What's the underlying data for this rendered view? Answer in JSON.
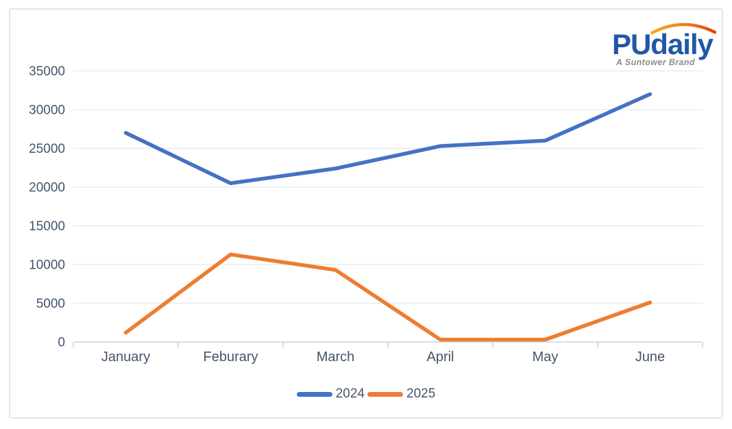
{
  "logo": {
    "brand": "PUdaily",
    "tagline": "A Suntower Brand",
    "brand_color": "#2157A7",
    "arc_colors": [
      "#F6A91F",
      "#F07D1A",
      "#E8430A"
    ]
  },
  "chart_data": {
    "type": "line",
    "title": "",
    "xlabel": "",
    "ylabel": "",
    "categories": [
      "January",
      "Feburary",
      "March",
      "April",
      "May",
      "June"
    ],
    "series": [
      {
        "name": "2024",
        "color": "#4472C4",
        "values": [
          27000,
          20500,
          22400,
          25300,
          26000,
          32000
        ]
      },
      {
        "name": "2025",
        "color": "#ED7D31",
        "values": [
          1200,
          11300,
          9300,
          300,
          300,
          5100
        ]
      }
    ],
    "ylim": [
      0,
      35000
    ],
    "ytick_step": 5000,
    "ytick_labels": [
      "0",
      "5000",
      "10000",
      "15000",
      "20000",
      "25000",
      "30000",
      "35000"
    ],
    "grid": true,
    "legend_position": "bottom-center",
    "axis_text_color": "#44546A",
    "gridline_color": "#E8EBF1",
    "axis_line_color": "#D8DEE6",
    "tick_color": "#C9CFD9"
  }
}
